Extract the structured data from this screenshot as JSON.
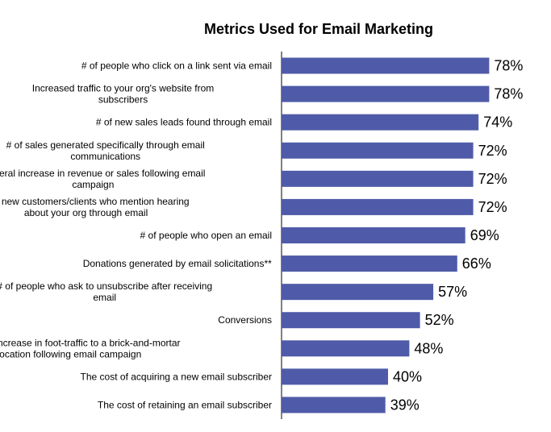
{
  "chart_data": {
    "type": "bar",
    "orientation": "horizontal",
    "title": "Metrics Used for Email Marketing",
    "xlabel": "",
    "ylabel": "",
    "xlim": [
      0,
      100
    ],
    "grid": false,
    "bar_color": "#4f5ba8",
    "categories": [
      [
        "# of people who click on a link sent via  email"
      ],
      [
        "Increased traffic to your org's website from",
        "subscribers"
      ],
      [
        "# of new sales leads  found through email"
      ],
      [
        "# of sales generated specifically through email",
        "communications"
      ],
      [
        "General increase in revenue or sales  following email",
        "campaign"
      ],
      [
        "# of new customers/clients who mention hearing",
        "about your org through email"
      ],
      [
        "# of people who open an email"
      ],
      [
        "Donations generated by email solicitations**"
      ],
      [
        "# of people who ask to unsubscribe after receiving",
        "email"
      ],
      [
        "Conversions"
      ],
      [
        "General increase in foot-traffic to a brick-and-mortar",
        "location following email campaign"
      ],
      [
        "The cost of acquiring  a new email subscriber"
      ],
      [
        "The cost of retaining an email  subscriber"
      ]
    ],
    "values": [
      78,
      78,
      74,
      72,
      72,
      72,
      69,
      66,
      57,
      52,
      48,
      40,
      39
    ],
    "value_labels": [
      "78%",
      "78%",
      "74%",
      "72%",
      "72%",
      "72%",
      "69%",
      "66%",
      "57%",
      "52%",
      "48%",
      "40%",
      "39%"
    ]
  }
}
